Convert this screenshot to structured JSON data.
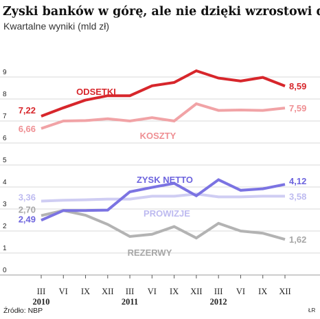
{
  "chart_data": {
    "type": "line",
    "title": "Zyski banków w górę, ale nie dzięki wzrostowi dochodów",
    "subtitle": "Kwartalne wyniki (mld zł)",
    "categories": [
      "III",
      "VI",
      "IX",
      "XII",
      "III",
      "VI",
      "IX",
      "XII",
      "III",
      "VI",
      "IX",
      "XII"
    ],
    "year_labels": [
      {
        "label": "2010",
        "category_index": 0
      },
      {
        "label": "2011",
        "category_index": 4
      },
      {
        "label": "2012",
        "category_index": 8
      }
    ],
    "ylim": [
      0,
      9.7
    ],
    "y_ticks": [
      0,
      1,
      2,
      3,
      4,
      5,
      6,
      7,
      8,
      9
    ],
    "grid": true,
    "series": [
      {
        "name": "ODSETKI",
        "color": "#d7262b",
        "label_color": "#d7262b",
        "values": [
          7.22,
          7.6,
          7.95,
          8.15,
          8.15,
          8.6,
          8.75,
          9.28,
          8.95,
          8.82,
          8.98,
          8.59
        ],
        "start_label": "7,22",
        "end_label": "8,59"
      },
      {
        "name": "KOSZTY",
        "color": "#f1a3a6",
        "label_color": "#ef8f93",
        "values": [
          6.66,
          7.0,
          7.02,
          7.1,
          7.0,
          7.15,
          7.0,
          7.78,
          7.48,
          7.5,
          7.48,
          7.59
        ],
        "start_label": "6,66",
        "end_label": "7,59"
      },
      {
        "name": "ZYSK NETTO",
        "color": "#7b73e2",
        "label_color": "#6d64de",
        "values": [
          2.49,
          2.93,
          2.93,
          2.95,
          3.78,
          3.98,
          4.17,
          3.6,
          4.33,
          3.85,
          3.92,
          4.12
        ],
        "start_label": "2,49",
        "end_label": "4,12"
      },
      {
        "name": "PROWIZJE",
        "color": "#cfcdf3",
        "label_color": "#bdbaf0",
        "values": [
          3.36,
          3.4,
          3.42,
          3.45,
          3.45,
          3.58,
          3.58,
          3.68,
          3.55,
          3.55,
          3.58,
          3.58
        ],
        "start_label": "3,36",
        "end_label": "3,58"
      },
      {
        "name": "REZERWY",
        "color": "#b3b3b3",
        "label_color": "#a6a6a6",
        "values": [
          2.7,
          2.93,
          2.72,
          2.3,
          1.75,
          1.85,
          2.2,
          1.68,
          2.35,
          2.0,
          1.9,
          1.62
        ],
        "start_label": "2,70",
        "end_label": "1,62"
      }
    ]
  },
  "footer": {
    "source": "Źródło: NBP",
    "credit": "ŁR"
  }
}
